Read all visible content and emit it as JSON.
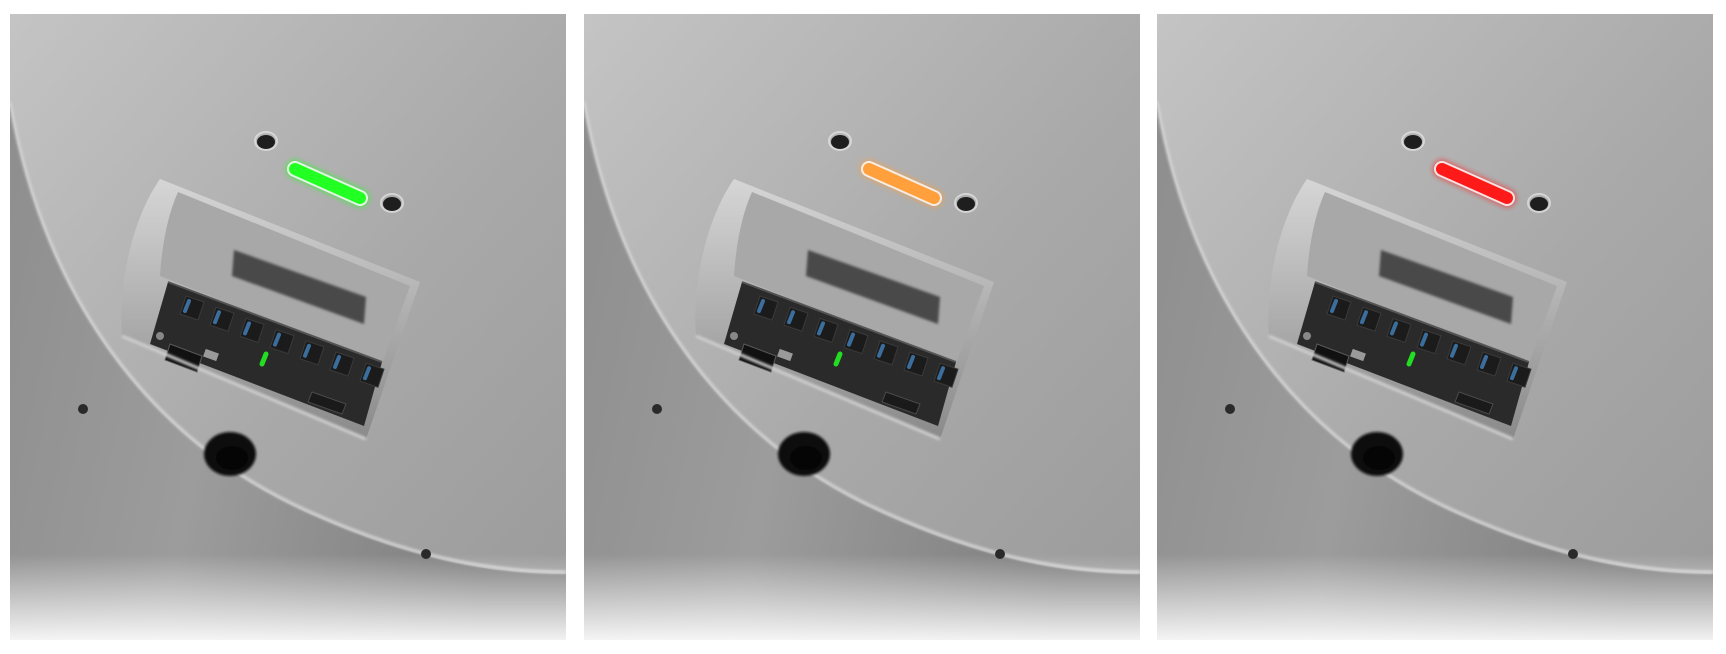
{
  "figure": {
    "panels": [
      {
        "state": "green",
        "led_color": "#22ff22",
        "port_led_color": "#22dd22"
      },
      {
        "state": "orange",
        "led_color": "#ffa03c",
        "port_led_color": "#22dd22"
      },
      {
        "state": "red",
        "led_color": "#ff1a1a",
        "port_led_color": "#22dd22"
      }
    ],
    "colors": {
      "body_light": "#bfbfbf",
      "body_mid": "#a9a9a9",
      "body_dark": "#7a7a7a",
      "port_panel": "#2a2a2a",
      "usb_blue": "#3b6e9c"
    }
  }
}
